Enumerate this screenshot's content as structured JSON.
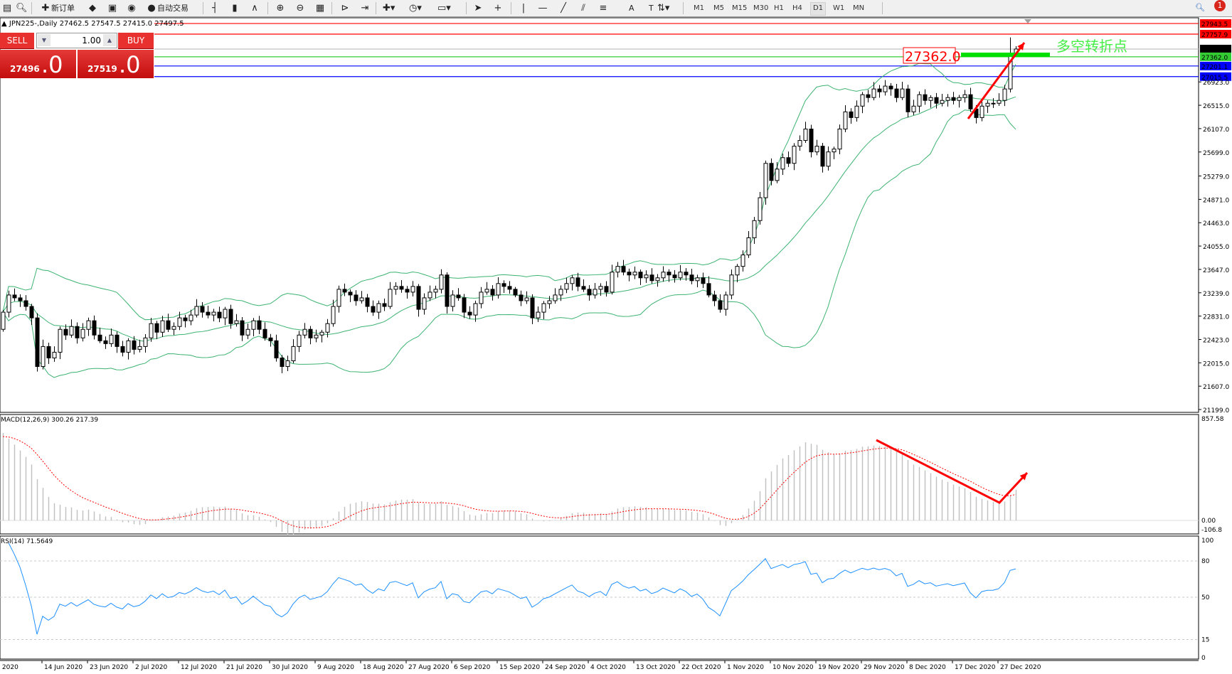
{
  "toolbar": {
    "items": [
      {
        "icon": "new-window-icon",
        "label": ""
      },
      {
        "icon": "zoom-window-icon",
        "label": ""
      },
      {
        "icon": "new-order-icon",
        "label": "新订单"
      },
      {
        "icon": "metaeditor-icon",
        "label": ""
      },
      {
        "icon": "terminal-icon",
        "label": ""
      },
      {
        "icon": "signal-icon",
        "label": ""
      },
      {
        "icon": "auto-trading-icon",
        "label": "自动交易"
      },
      {
        "icon": "bar-chart-icon",
        "label": ""
      },
      {
        "icon": "candlestick-icon",
        "label": ""
      },
      {
        "icon": "line-chart-icon",
        "label": ""
      },
      {
        "icon": "zoom-in-icon",
        "label": ""
      },
      {
        "icon": "zoom-out-icon",
        "label": ""
      },
      {
        "icon": "tile-windows-icon",
        "label": ""
      },
      {
        "icon": "chart-shift-icon",
        "label": ""
      },
      {
        "icon": "autoscroll-icon",
        "label": ""
      },
      {
        "icon": "indicators-icon",
        "label": ""
      },
      {
        "icon": "periods-icon",
        "label": ""
      },
      {
        "icon": "templates-icon",
        "label": ""
      },
      {
        "icon": "cursor-icon",
        "label": ""
      },
      {
        "icon": "crosshair-icon",
        "label": ""
      },
      {
        "icon": "vertical-line-icon",
        "label": ""
      },
      {
        "icon": "horizontal-line-icon",
        "label": ""
      },
      {
        "icon": "trendline-icon",
        "label": ""
      },
      {
        "icon": "equidistant-channel-icon",
        "label": ""
      },
      {
        "icon": "fibonacci-icon",
        "label": ""
      },
      {
        "icon": "text-icon",
        "label": "A"
      },
      {
        "icon": "text-label-icon",
        "label": "T"
      },
      {
        "icon": "arrows-icon",
        "label": ""
      }
    ],
    "timeframes": [
      "M1",
      "M5",
      "M15",
      "M30",
      "H1",
      "H4",
      "D1",
      "W1",
      "MN"
    ],
    "active_timeframe": "D1",
    "notification_count": "1"
  },
  "header": {
    "text": "JPN225-,Daily  27462.5 27547.5 27415.0 27497.5"
  },
  "trade_panel": {
    "sell_label": "SELL",
    "buy_label": "BUY",
    "lot": "1.00",
    "sell_price_small": "27496",
    "sell_price_big": ".0",
    "buy_price_small": "27519",
    "buy_price_big": ".0"
  },
  "colors": {
    "up_candle": "#ffffff",
    "down_candle": "#000000",
    "bands": "#3cb371",
    "macd_hist": "#c0c0c0",
    "macd_signal": "#ff0000",
    "rsi": "#1e90ff",
    "annotation": "#ff0000",
    "pivot": "#00e000"
  },
  "price_axis": [
    "26923.0",
    "26515.0",
    "26107.0",
    "25699.0",
    "25279.0",
    "24871.0",
    "24463.0",
    "24055.0",
    "23647.0",
    "23239.0",
    "22831.0",
    "22423.0",
    "22015.0",
    "21607.0",
    "21199.0"
  ],
  "hlines": [
    {
      "price": 27943.5,
      "label": "27943.5",
      "color": "#ff0000"
    },
    {
      "price": 27757.9,
      "label": "27757.9",
      "color": "#ff0000"
    },
    {
      "price": 27497.5,
      "label": "27497.5",
      "color": "#000000",
      "line": "#c0c0c0"
    },
    {
      "price": 27362.0,
      "label": "27362.0",
      "color": "#33cc33",
      "line": "#33cc33"
    },
    {
      "price": 27201.1,
      "label": "27201.1",
      "color": "#0000ff"
    },
    {
      "price": 27015.5,
      "label": "27015.5",
      "color": "#0000ff"
    }
  ],
  "annotations": {
    "price_box": "27362.0",
    "pivot_text": "多空转折点"
  },
  "macd": {
    "title": "MACD(12,26,9) 300.26 217.39",
    "axis": [
      "857.58",
      "0.00",
      "-106.8"
    ]
  },
  "rsi": {
    "title": "RSI(14) 71.5649",
    "axis": [
      "100",
      "80",
      "50",
      "15",
      "0"
    ]
  },
  "date_axis": [
    "Jun 2020",
    "14 Jun 2020",
    "23 Jun 2020",
    "2 Jul 2020",
    "12 Jul 2020",
    "21 Jul 2020",
    "30 Jul 2020",
    "9 Aug 2020",
    "18 Aug 2020",
    "27 Aug 2020",
    "6 Sep 2020",
    "15 Sep 2020",
    "24 Sep 2020",
    "4 Oct 2020",
    "13 Oct 2020",
    "22 Oct 2020",
    "1 Nov 2020",
    "10 Nov 2020",
    "19 Nov 2020",
    "29 Nov 2020",
    "8 Dec 2020",
    "17 Dec 2020",
    "27 Dec 2020"
  ],
  "chart_data": {
    "type": "candlestick",
    "symbol": "JPN225-",
    "timeframe": "Daily",
    "last_bar": {
      "open": 27462.5,
      "high": 27547.5,
      "low": 27415.0,
      "close": 27497.5
    },
    "ylim": [
      21199.0,
      27943.5
    ],
    "indicators": [
      "Bollinger Bands",
      "MACD(12,26,9)",
      "RSI(14)"
    ],
    "close": [
      22900,
      23200,
      23150,
      23100,
      23000,
      22800,
      21950,
      22300,
      22100,
      22200,
      22600,
      22500,
      22650,
      22450,
      22600,
      22750,
      22500,
      22400,
      22350,
      22500,
      22300,
      22200,
      22400,
      22250,
      22300,
      22450,
      22700,
      22550,
      22750,
      22600,
      22650,
      22800,
      22750,
      22850,
      23000,
      22900,
      22850,
      22900,
      22800,
      22950,
      22700,
      22750,
      22500,
      22600,
      22750,
      22600,
      22450,
      22400,
      22100,
      21950,
      22050,
      22300,
      22500,
      22600,
      22450,
      22500,
      22550,
      22700,
      23000,
      23300,
      23250,
      23200,
      23100,
      23150,
      23000,
      22900,
      23050,
      23000,
      23300,
      23350,
      23300,
      23250,
      23350,
      22950,
      23150,
      23250,
      23300,
      23550,
      23000,
      23200,
      23150,
      22900,
      22850,
      23050,
      23250,
      23300,
      23200,
      23400,
      23350,
      23300,
      23200,
      23100,
      23150,
      22800,
      22900,
      23050,
      23100,
      23200,
      23300,
      23400,
      23500,
      23350,
      23300,
      23200,
      23300,
      23350,
      23250,
      23600,
      23700,
      23600,
      23550,
      23600,
      23500,
      23550,
      23450,
      23500,
      23600,
      23550,
      23500,
      23600,
      23550,
      23450,
      23500,
      23400,
      23200,
      23100,
      22950,
      23200,
      23550,
      23700,
      23900,
      24200,
      24500,
      24900,
      25500,
      25200,
      25400,
      25600,
      25500,
      25800,
      25900,
      26100,
      25700,
      25800,
      25450,
      25700,
      25750,
      26100,
      26400,
      26300,
      26500,
      26700,
      26650,
      26800,
      26750,
      26850,
      26800,
      26650,
      26800,
      26400,
      26500,
      26700,
      26600,
      26650,
      26550,
      26600,
      26650,
      26600,
      26650,
      26700,
      26450,
      26300,
      26500,
      26550,
      26550,
      26600,
      26800,
      27400,
      27497.5
    ]
  }
}
